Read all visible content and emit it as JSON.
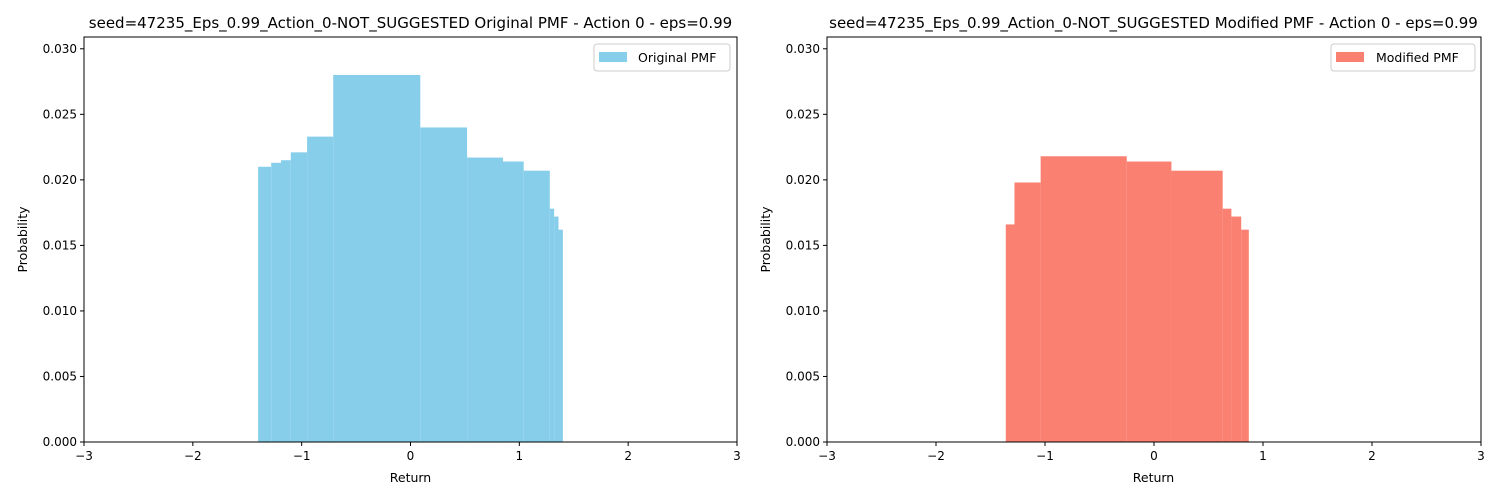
{
  "colors": {
    "original": "#87CEEB",
    "modified": "#FA8072"
  },
  "chart_data": [
    {
      "type": "bar",
      "title": "seed=47235_Eps_0.99_Action_0-NOT_SUGGESTED Original PMF - Action 0 - eps=0.99",
      "xlabel": "Return",
      "ylabel": "Probability",
      "xlim": [
        -3,
        3
      ],
      "ylim": [
        0,
        0.0309
      ],
      "x_ticks": [
        "−3",
        "−2",
        "−1",
        "0",
        "1",
        "2",
        "3"
      ],
      "y_ticks": [
        "0.000",
        "0.005",
        "0.010",
        "0.015",
        "0.020",
        "0.025",
        "0.030"
      ],
      "legend": {
        "label": "Original PMF",
        "position": "top-right"
      },
      "color": "#87CEEB",
      "bars": [
        {
          "x0": -1.4,
          "x1": -1.28,
          "y": 0.021
        },
        {
          "x0": -1.28,
          "x1": -1.19,
          "y": 0.0213
        },
        {
          "x0": -1.19,
          "x1": -1.1,
          "y": 0.0215
        },
        {
          "x0": -1.1,
          "x1": -0.95,
          "y": 0.0221
        },
        {
          "x0": -0.95,
          "x1": -0.71,
          "y": 0.0233
        },
        {
          "x0": -0.71,
          "x1": 0.09,
          "y": 0.028
        },
        {
          "x0": 0.09,
          "x1": 0.52,
          "y": 0.024
        },
        {
          "x0": 0.52,
          "x1": 0.85,
          "y": 0.0217
        },
        {
          "x0": 0.85,
          "x1": 1.04,
          "y": 0.0214
        },
        {
          "x0": 1.04,
          "x1": 1.28,
          "y": 0.0207
        },
        {
          "x0": 1.28,
          "x1": 1.32,
          "y": 0.0178
        },
        {
          "x0": 1.32,
          "x1": 1.36,
          "y": 0.0172
        },
        {
          "x0": 1.36,
          "x1": 1.4,
          "y": 0.0162
        }
      ]
    },
    {
      "type": "bar",
      "title": "seed=47235_Eps_0.99_Action_0-NOT_SUGGESTED Modified PMF - Action 0 - eps=0.99",
      "xlabel": "Return",
      "ylabel": "Probability",
      "xlim": [
        -3,
        3
      ],
      "ylim": [
        0,
        0.0309
      ],
      "x_ticks": [
        "−3",
        "−2",
        "−1",
        "0",
        "1",
        "2",
        "3"
      ],
      "y_ticks": [
        "0.000",
        "0.005",
        "0.010",
        "0.015",
        "0.020",
        "0.025",
        "0.030"
      ],
      "legend": {
        "label": "Modified PMF",
        "position": "top-right"
      },
      "color": "#FA8072",
      "bars": [
        {
          "x0": -1.36,
          "x1": -1.28,
          "y": 0.0166
        },
        {
          "x0": -1.28,
          "x1": -1.04,
          "y": 0.0198
        },
        {
          "x0": -1.04,
          "x1": -0.25,
          "y": 0.0218
        },
        {
          "x0": -0.25,
          "x1": 0.16,
          "y": 0.0214
        },
        {
          "x0": 0.16,
          "x1": 0.63,
          "y": 0.0207
        },
        {
          "x0": 0.63,
          "x1": 0.71,
          "y": 0.0178
        },
        {
          "x0": 0.71,
          "x1": 0.8,
          "y": 0.0172
        },
        {
          "x0": 0.8,
          "x1": 0.87,
          "y": 0.0162
        }
      ]
    }
  ]
}
